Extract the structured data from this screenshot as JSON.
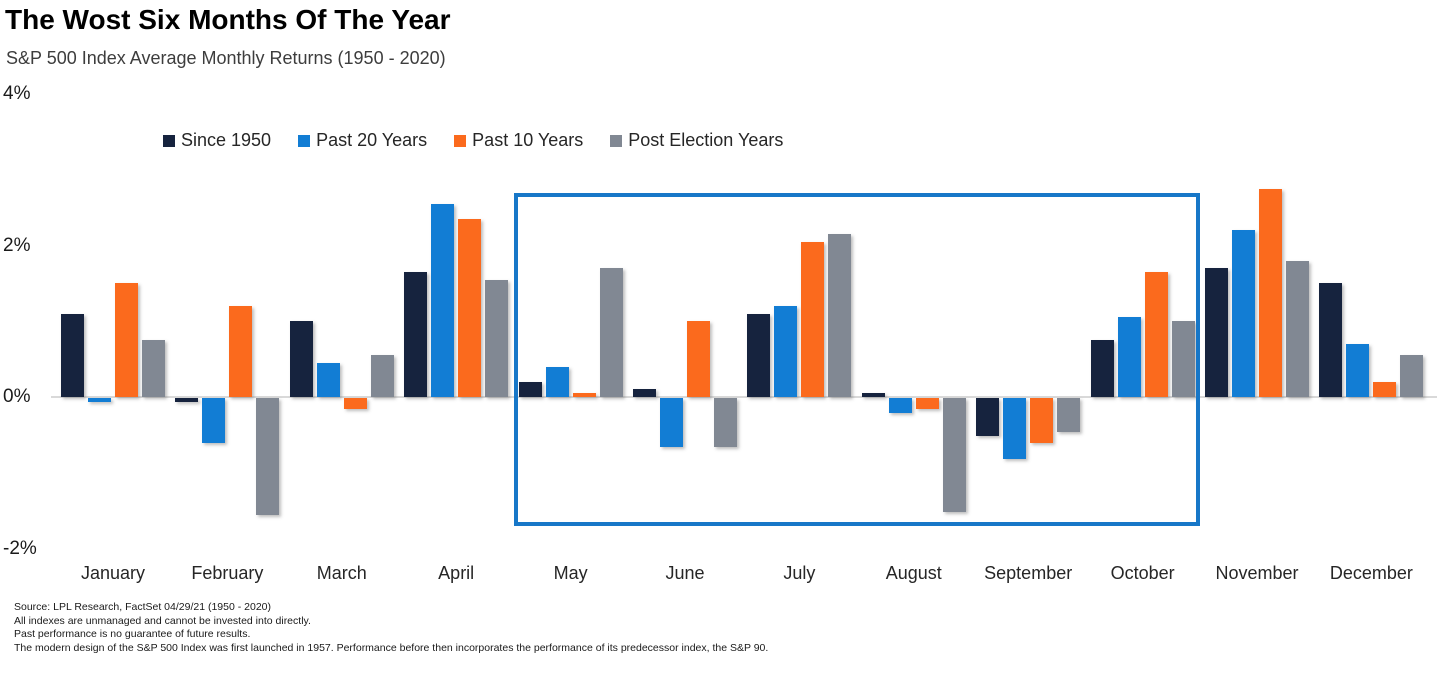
{
  "title": "The Wost Six Months Of The Year",
  "subtitle": "S&P 500 Index Average Monthly Returns (1950 - 2020)",
  "chart_data": {
    "type": "bar",
    "title": "The Wost Six Months Of The Year",
    "subtitle": "S&P 500 Index Average Monthly Returns (1950 - 2020)",
    "categories": [
      "January",
      "February",
      "March",
      "April",
      "May",
      "June",
      "July",
      "August",
      "September",
      "October",
      "November",
      "December"
    ],
    "series": [
      {
        "name": "Since 1950",
        "color": "#16233e",
        "values": [
          1.1,
          -0.05,
          1.0,
          1.65,
          0.2,
          0.1,
          1.1,
          0.05,
          -0.5,
          0.75,
          1.7,
          1.5
        ]
      },
      {
        "name": "Past 20 Years",
        "color": "#127dd4",
        "values": [
          -0.05,
          -0.6,
          0.45,
          2.55,
          0.4,
          -0.65,
          1.2,
          -0.2,
          -0.8,
          1.05,
          2.2,
          0.7
        ]
      },
      {
        "name": "Past 10 Years",
        "color": "#fb6a1d",
        "values": [
          1.5,
          1.2,
          -0.15,
          2.35,
          0.05,
          1.0,
          2.05,
          -0.15,
          -0.6,
          1.65,
          2.75,
          0.2
        ]
      },
      {
        "name": "Post Election Years",
        "color": "#818893",
        "values": [
          0.75,
          -1.55,
          0.55,
          1.55,
          1.7,
          -0.65,
          2.15,
          -1.5,
          -0.45,
          1.0,
          1.8,
          0.55
        ]
      }
    ],
    "y_ticks": [
      {
        "label": "4%",
        "value": 4
      },
      {
        "label": "2%",
        "value": 2
      },
      {
        "label": "0%",
        "value": 0
      },
      {
        "label": "-2%",
        "value": -2
      }
    ],
    "ylim": [
      -2,
      4
    ],
    "grid": false,
    "legend_position": "top",
    "highlight_box": {
      "from": "May",
      "to": "October",
      "color": "#1777c8"
    }
  },
  "footnotes": [
    "Source: LPL Research, FactSet 04/29/21  (1950 - 2020)",
    "All indexes are unmanaged and cannot be invested into directly.",
    "Past performance is no guarantee of future results.",
    "The modern design of the S&P 500 Index was first launched in 1957. Performance before then incorporates the performance of its predecessor index, the S&P 90."
  ]
}
